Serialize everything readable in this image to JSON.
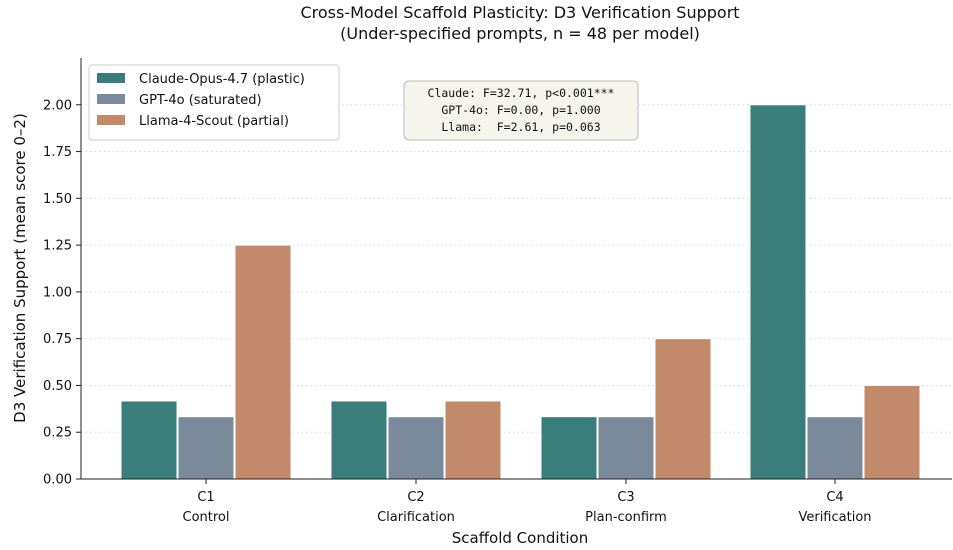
{
  "chart_data": {
    "type": "bar",
    "title": "Cross-Model Scaffold Plasticity: D3 Verification Support",
    "subtitle": "(Under-specified prompts, n = 48 per model)",
    "xlabel": "Scaffold Condition",
    "ylabel": "D3 Verification Support (mean score 0–2)",
    "categories": [
      {
        "code": "C1",
        "label": "Control"
      },
      {
        "code": "C2",
        "label": "Clarification"
      },
      {
        "code": "C3",
        "label": "Plan-confirm"
      },
      {
        "code": "C4",
        "label": "Verification"
      }
    ],
    "series": [
      {
        "name": "Claude-Opus-4.7 (plastic)",
        "color": "#3a7d7b",
        "values": [
          0.417,
          0.417,
          0.333,
          2.0
        ]
      },
      {
        "name": "GPT-4o (saturated)",
        "color": "#7b8a9a",
        "values": [
          0.333,
          0.333,
          0.333,
          0.333
        ]
      },
      {
        "name": "Llama-4-Scout (partial)",
        "color": "#c2896a",
        "values": [
          1.25,
          0.417,
          0.75,
          0.5
        ]
      }
    ],
    "ylim": [
      0,
      2.25
    ],
    "yticks": [
      "0.00",
      "0.25",
      "0.50",
      "0.75",
      "1.00",
      "1.25",
      "1.50",
      "1.75",
      "2.00"
    ],
    "grid": "horizontal dotted",
    "legend": "top-left",
    "annotation": [
      "Claude: F=32.71, p<0.001***",
      "GPT-4o: F=0.00, p=1.000",
      "Llama:  F=2.61, p=0.063"
    ]
  }
}
